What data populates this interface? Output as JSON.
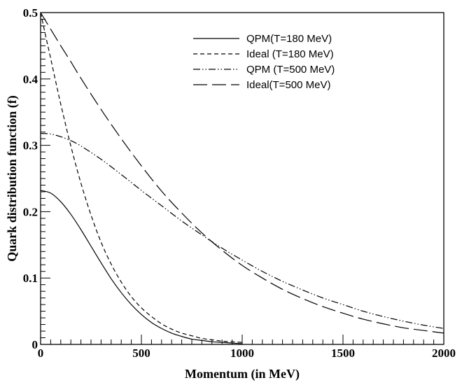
{
  "chart_data": {
    "type": "line",
    "title": "",
    "xlabel": "Momentum (in MeV)",
    "ylabel": "Quark distribution function (f)",
    "xlim": [
      0,
      2000
    ],
    "ylim": [
      0,
      0.5
    ],
    "x_major_ticks": [
      0,
      500,
      1000,
      1500,
      2000
    ],
    "x_tick_labels": [
      "0",
      "500",
      "1000",
      "1500",
      "2000"
    ],
    "y_major_ticks": [
      0,
      0.1,
      0.2,
      0.3,
      0.4,
      0.5
    ],
    "y_tick_labels": [
      "0",
      "0.1",
      "0.2",
      "0.3",
      "0.4",
      "0.5"
    ],
    "grid": false,
    "legend_position": "top-right",
    "series": [
      {
        "name": "QPM(T=180 MeV)",
        "style": "solid",
        "x": [
          0,
          50,
          100,
          150,
          200,
          250,
          300,
          350,
          400,
          450,
          500,
          550,
          600,
          650,
          700,
          750,
          800,
          850,
          900,
          950,
          1000
        ],
        "y": [
          0.232,
          0.228,
          0.215,
          0.196,
          0.173,
          0.148,
          0.123,
          0.099,
          0.078,
          0.06,
          0.045,
          0.033,
          0.024,
          0.017,
          0.012,
          0.008,
          0.006,
          0.004,
          0.003,
          0.002,
          0.001
        ]
      },
      {
        "name": "Ideal (T=180 MeV)",
        "style": "dashed",
        "x": [
          0,
          25,
          50,
          75,
          100,
          150,
          200,
          250,
          300,
          350,
          400,
          450,
          500,
          550,
          600,
          650,
          700,
          750,
          800,
          850,
          900,
          950,
          1000
        ],
        "y": [
          0.5,
          0.465,
          0.431,
          0.396,
          0.362,
          0.299,
          0.243,
          0.195,
          0.154,
          0.121,
          0.094,
          0.072,
          0.055,
          0.042,
          0.031,
          0.023,
          0.017,
          0.013,
          0.009,
          0.007,
          0.005,
          0.004,
          0.003
        ]
      },
      {
        "name": "QPM (T=500 MeV)",
        "style": "dashdotdot",
        "x": [
          0,
          50,
          100,
          150,
          200,
          300,
          400,
          500,
          600,
          700,
          800,
          900,
          1000,
          1100,
          1200,
          1300,
          1400,
          1500,
          1600,
          1700,
          1800,
          1900,
          2000
        ],
        "y": [
          0.318,
          0.317,
          0.313,
          0.307,
          0.299,
          0.279,
          0.256,
          0.232,
          0.209,
          0.186,
          0.165,
          0.145,
          0.127,
          0.11,
          0.095,
          0.082,
          0.07,
          0.06,
          0.05,
          0.042,
          0.035,
          0.029,
          0.024
        ]
      },
      {
        "name": "Ideal(T=500 MeV)",
        "style": "longdash",
        "x": [
          0,
          50,
          100,
          150,
          200,
          300,
          400,
          500,
          600,
          700,
          800,
          900,
          1000,
          1100,
          1200,
          1300,
          1400,
          1500,
          1600,
          1700,
          1800,
          1900,
          2000
        ],
        "y": [
          0.5,
          0.475,
          0.45,
          0.426,
          0.401,
          0.354,
          0.31,
          0.269,
          0.231,
          0.198,
          0.168,
          0.142,
          0.119,
          0.1,
          0.083,
          0.069,
          0.057,
          0.047,
          0.038,
          0.031,
          0.025,
          0.021,
          0.017
        ]
      }
    ]
  }
}
